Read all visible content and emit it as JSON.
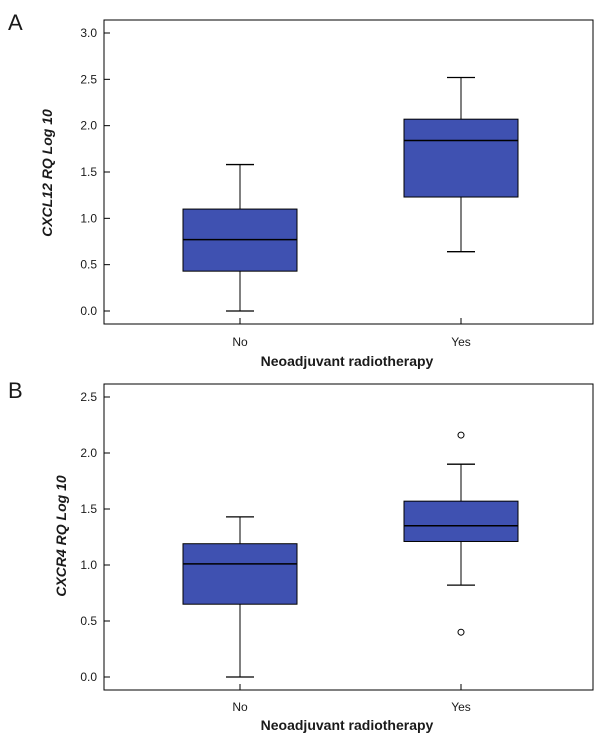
{
  "chart_data": [
    {
      "panel": "A",
      "type": "box",
      "xlabel": "Neoadjuvant radiotherapy",
      "ylabel": "CXCL12 RQ Log 10",
      "ylim": [
        0,
        3.0
      ],
      "yticks": [
        "0.0",
        "0.5",
        "1.0",
        "1.5",
        "2.0",
        "2.5",
        "3.0"
      ],
      "categories": [
        "No",
        "Yes"
      ],
      "boxes": [
        {
          "category": "No",
          "min": 0.0,
          "q1": 0.43,
          "median": 0.77,
          "q3": 1.1,
          "max": 1.58,
          "outliers": []
        },
        {
          "category": "Yes",
          "min": 0.64,
          "q1": 1.23,
          "median": 1.84,
          "q3": 2.07,
          "max": 2.52,
          "outliers": []
        }
      ],
      "box_color": "#3f51b1"
    },
    {
      "panel": "B",
      "type": "box",
      "xlabel": "Neoadjuvant radiotherapy",
      "ylabel": "CXCR4 RQ Log 10",
      "ylim": [
        0,
        2.5
      ],
      "yticks": [
        "0.0",
        "0.5",
        "1.0",
        "1.5",
        "2.0",
        "2.5"
      ],
      "categories": [
        "No",
        "Yes"
      ],
      "boxes": [
        {
          "category": "No",
          "min": 0.0,
          "q1": 0.65,
          "median": 1.01,
          "q3": 1.19,
          "max": 1.43,
          "outliers": []
        },
        {
          "category": "Yes",
          "min": 0.82,
          "q1": 1.21,
          "median": 1.35,
          "q3": 1.57,
          "max": 1.9,
          "outliers": [
            2.16,
            0.4
          ]
        }
      ],
      "box_color": "#3f51b1"
    }
  ]
}
